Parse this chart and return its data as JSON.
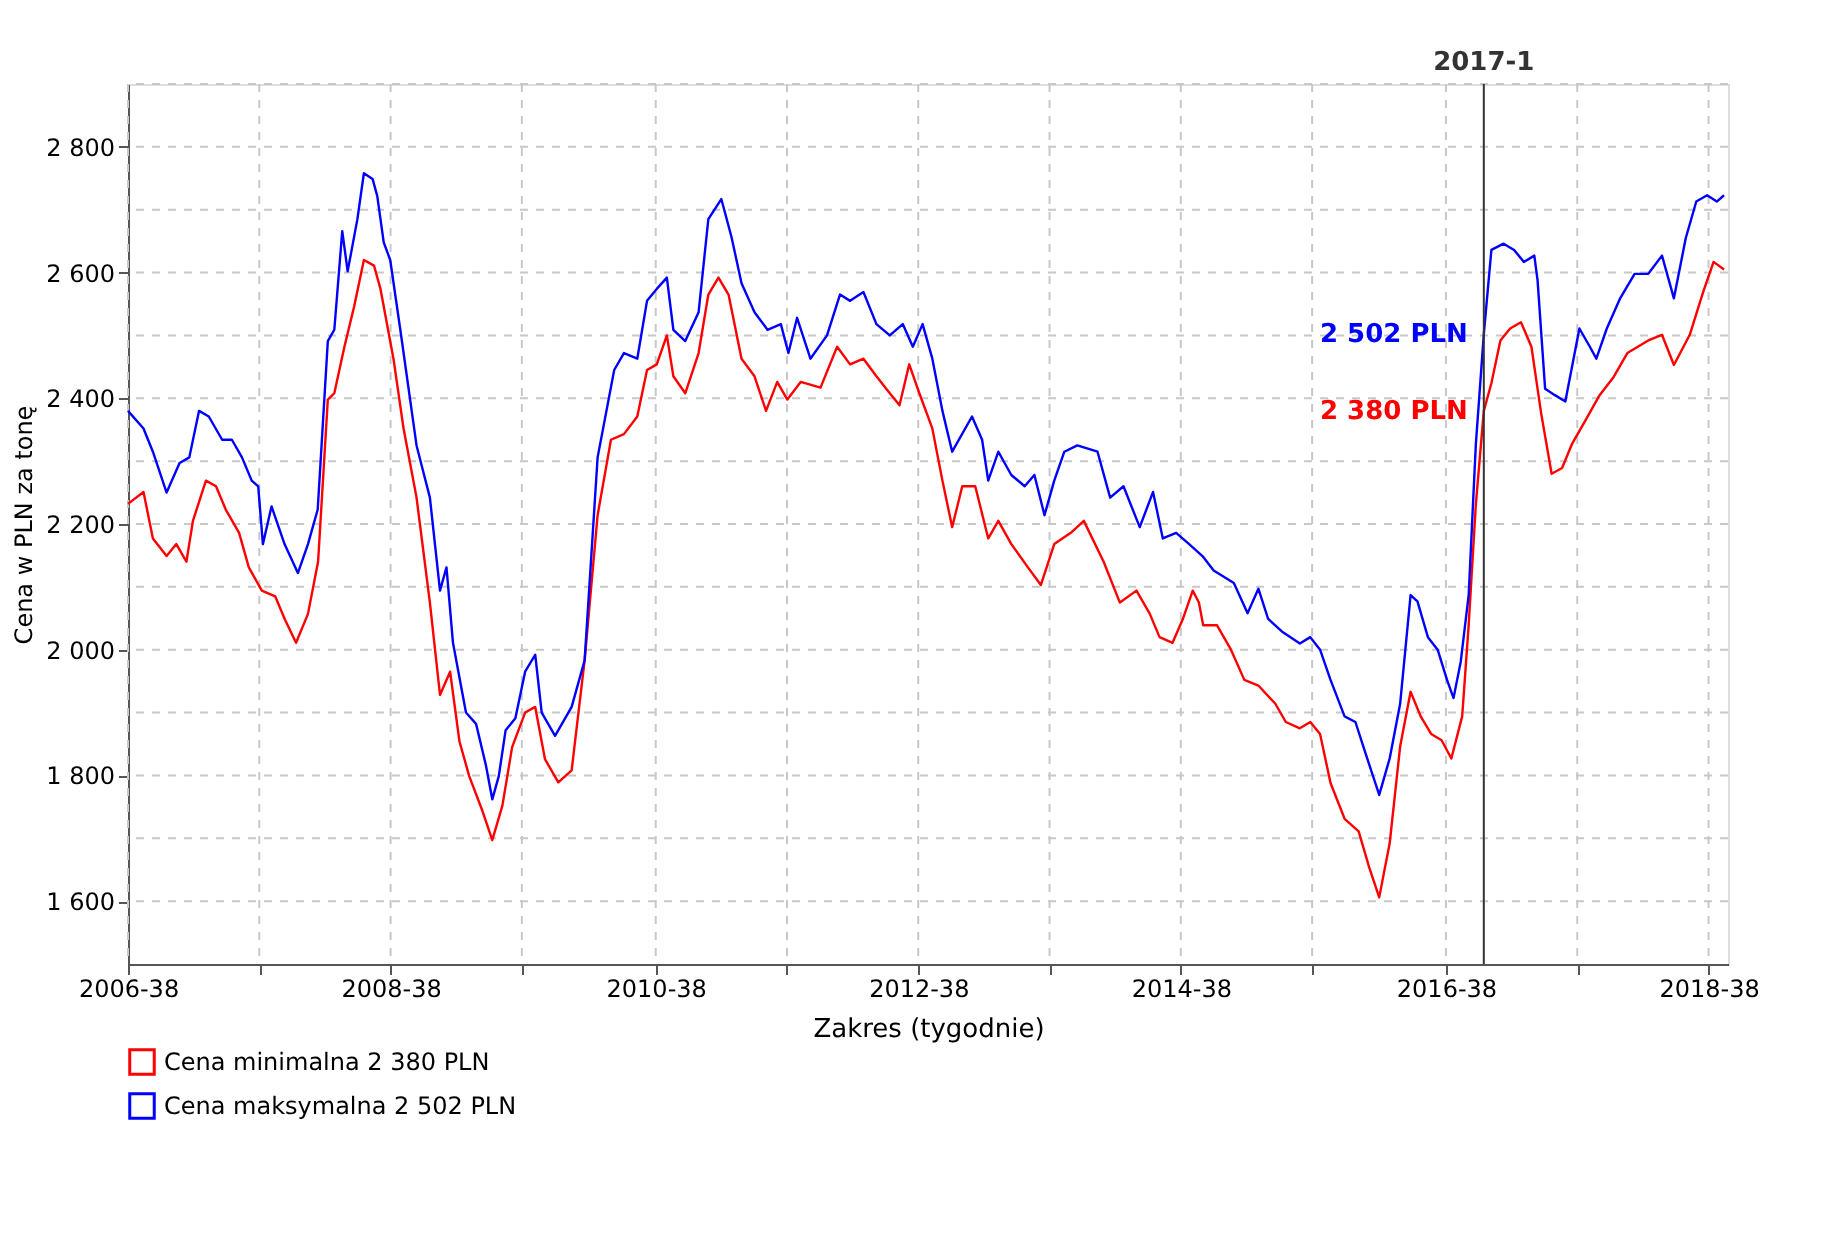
{
  "chart_data": {
    "type": "line",
    "xlabel": "Zakres (tygodnie)",
    "ylabel": "Cena w PLN za tonę",
    "xlim": [
      "2006-09-18",
      "2018-11-10"
    ],
    "xticks": [
      {
        "value": "2006-09-18",
        "label": "2006-38"
      },
      {
        "value": "2007-09-17",
        "label": null
      },
      {
        "value": "2008-09-15",
        "label": "2008-38"
      },
      {
        "value": "2009-09-14",
        "label": null
      },
      {
        "value": "2010-09-20",
        "label": "2010-38"
      },
      {
        "value": "2011-09-19",
        "label": null
      },
      {
        "value": "2012-09-17",
        "label": "2012-38"
      },
      {
        "value": "2013-09-16",
        "label": null
      },
      {
        "value": "2014-09-15",
        "label": "2014-38"
      },
      {
        "value": "2015-09-14",
        "label": null
      },
      {
        "value": "2016-09-19",
        "label": "2016-38"
      },
      {
        "value": "2017-09-18",
        "label": null
      },
      {
        "value": "2018-09-17",
        "label": "2018-38"
      }
    ],
    "ylim": [
      1500,
      2900
    ],
    "yticks": [
      {
        "value": 1600,
        "label": "1 600"
      },
      {
        "value": 1700,
        "label": null
      },
      {
        "value": 1800,
        "label": "1 800"
      },
      {
        "value": 1900,
        "label": null
      },
      {
        "value": 2000,
        "label": "2 000"
      },
      {
        "value": 2100,
        "label": null
      },
      {
        "value": 2200,
        "label": "2 200"
      },
      {
        "value": 2300,
        "label": null
      },
      {
        "value": 2400,
        "label": "2 400"
      },
      {
        "value": 2500,
        "label": null
      },
      {
        "value": 2600,
        "label": "2 600"
      },
      {
        "value": 2700,
        "label": null
      },
      {
        "value": 2800,
        "label": "2 800"
      },
      {
        "value": 2900,
        "label": null
      }
    ],
    "grid": true,
    "legend": "bottom left",
    "marker": "none",
    "line_style": "solid",
    "series": [
      {
        "name": "Cena minimalna 2 380 PLN",
        "color": "#ff0000",
        "x": [
          "2006-09-18",
          "2006-10-31",
          "2006-11-26",
          "2007-01-03",
          "2007-01-30",
          "2007-02-27",
          "2007-03-17",
          "2007-04-22",
          "2007-05-20",
          "2007-06-16",
          "2007-07-23",
          "2007-08-19",
          "2007-09-24",
          "2007-10-31",
          "2007-11-27",
          "2007-12-28",
          "2008-01-30",
          "2008-02-27",
          "2008-03-25",
          "2008-04-12",
          "2008-05-10",
          "2008-06-06",
          "2008-07-03",
          "2008-07-31",
          "2008-08-18",
          "2008-09-23",
          "2008-10-21",
          "2008-11-26",
          "2009-01-02",
          "2009-01-30",
          "2009-02-27",
          "2009-03-25",
          "2009-04-21",
          "2009-05-28",
          "2009-06-24",
          "2009-07-22",
          "2009-08-18",
          "2009-09-23",
          "2009-10-21",
          "2009-11-17",
          "2009-12-24",
          "2010-01-30",
          "2010-03-07",
          "2010-04-12",
          "2010-05-19",
          "2010-06-24",
          "2010-07-31",
          "2010-08-27",
          "2010-09-23",
          "2010-10-21",
          "2010-11-08",
          "2010-12-11",
          "2011-01-17",
          "2011-02-13",
          "2011-03-13",
          "2011-04-10",
          "2011-05-16",
          "2011-06-21",
          "2011-07-23",
          "2011-08-23",
          "2011-09-20",
          "2011-10-27",
          "2011-12-21",
          "2012-02-05",
          "2012-03-12",
          "2012-04-18",
          "2012-05-24",
          "2012-06-30",
          "2012-07-27",
          "2012-08-23",
          "2012-09-20",
          "2012-10-26",
          "2012-11-23",
          "2012-12-20",
          "2013-01-17",
          "2013-02-22",
          "2013-03-30",
          "2013-04-27",
          "2013-06-02",
          "2013-07-18",
          "2013-08-23",
          "2013-09-29",
          "2013-11-14",
          "2013-12-20",
          "2014-02-13",
          "2014-03-30",
          "2014-05-15",
          "2014-06-21",
          "2014-07-18",
          "2014-08-23",
          "2014-09-20",
          "2014-10-18",
          "2014-11-04",
          "2014-11-16",
          "2014-12-24",
          "2015-02-01",
          "2015-03-10",
          "2015-04-18",
          "2015-06-04",
          "2015-07-03",
          "2015-08-11",
          "2015-09-09",
          "2015-10-06",
          "2015-11-04",
          "2015-12-13",
          "2016-01-21",
          "2016-02-19",
          "2016-03-18",
          "2016-04-16",
          "2016-05-15",
          "2016-06-13",
          "2016-07-11",
          "2016-08-09",
          "2016-09-07",
          "2016-10-04",
          "2016-11-03",
          "2016-11-21",
          "2016-12-11",
          "2017-01-02",
          "2017-01-23",
          "2017-02-17",
          "2017-03-16",
          "2017-04-15",
          "2017-05-14",
          "2017-06-10",
          "2017-07-09",
          "2017-08-07",
          "2017-09-04",
          "2017-10-12",
          "2017-11-19",
          "2017-12-28",
          "2018-02-04",
          "2018-04-03",
          "2018-05-11",
          "2018-06-13",
          "2018-07-27",
          "2018-09-02",
          "2018-10-01",
          "2018-10-30"
        ],
        "values": [
          2232,
          2251,
          2177,
          2149,
          2168,
          2140,
          2205,
          2269,
          2260,
          2223,
          2186,
          2131,
          2094,
          2085,
          2048,
          2011,
          2057,
          2140,
          2398,
          2408,
          2482,
          2546,
          2620,
          2611,
          2574,
          2463,
          2352,
          2242,
          2075,
          1928,
          1965,
          1854,
          1799,
          1743,
          1697,
          1752,
          1845,
          1900,
          1909,
          1826,
          1789,
          1808,
          1983,
          2214,
          2334,
          2343,
          2371,
          2445,
          2454,
          2500,
          2435,
          2408,
          2472,
          2565,
          2592,
          2565,
          2463,
          2435,
          2380,
          2426,
          2398,
          2426,
          2417,
          2482,
          2454,
          2463,
          2435,
          2408,
          2389,
          2454,
          2408,
          2352,
          2269,
          2195,
          2260,
          2260,
          2177,
          2205,
          2168,
          2131,
          2103,
          2168,
          2186,
          2205,
          2140,
          2075,
          2094,
          2057,
          2020,
          2011,
          2048,
          2094,
          2075,
          2039,
          2039,
          2000,
          1952,
          1943,
          1914,
          1885,
          1875,
          1885,
          1866,
          1788,
          1731,
          1711,
          1654,
          1606,
          1692,
          1846,
          1933,
          1894,
          1866,
          1856,
          1827,
          1894,
          2039,
          2232,
          2380,
          2424,
          2492,
          2511,
          2521,
          2482,
          2376,
          2280,
          2289,
          2328,
          2366,
          2405,
          2434,
          2472,
          2492,
          2501,
          2453,
          2501,
          2569,
          2617,
          2605
        ]
      },
      {
        "name": "Cena maksymalna 2 502 PLN",
        "color": "#0000ff",
        "x": [
          "2006-09-18",
          "2006-10-31",
          "2006-11-26",
          "2007-01-03",
          "2007-02-08",
          "2007-03-07",
          "2007-04-03",
          "2007-04-30",
          "2007-06-06",
          "2007-07-03",
          "2007-07-31",
          "2007-08-27",
          "2007-09-14",
          "2007-09-27",
          "2007-10-21",
          "2007-11-26",
          "2008-01-02",
          "2008-01-30",
          "2008-02-26",
          "2008-03-25",
          "2008-04-12",
          "2008-05-04",
          "2008-05-19",
          "2008-06-15",
          "2008-07-03",
          "2008-07-27",
          "2008-08-09",
          "2008-08-27",
          "2008-09-14",
          "2008-10-12",
          "2008-11-26",
          "2009-01-02",
          "2009-01-30",
          "2009-02-17",
          "2009-03-07",
          "2009-04-12",
          "2009-05-10",
          "2009-06-06",
          "2009-06-24",
          "2009-07-12",
          "2009-07-31",
          "2009-08-27",
          "2009-09-23",
          "2009-10-21",
          "2009-11-08",
          "2009-12-15",
          "2010-01-30",
          "2010-03-07",
          "2010-04-12",
          "2010-05-28",
          "2010-06-24",
          "2010-07-31",
          "2010-08-27",
          "2010-09-23",
          "2010-10-21",
          "2010-11-08",
          "2010-12-11",
          "2011-01-17",
          "2011-02-13",
          "2011-03-21",
          "2011-04-18",
          "2011-05-16",
          "2011-06-21",
          "2011-07-27",
          "2011-09-02",
          "2011-09-23",
          "2011-10-17",
          "2011-11-23",
          "2012-01-08",
          "2012-02-13",
          "2012-03-12",
          "2012-04-18",
          "2012-05-24",
          "2012-06-30",
          "2012-08-05",
          "2012-09-02",
          "2012-09-29",
          "2012-10-26",
          "2012-11-23",
          "2012-12-20",
          "2013-02-13",
          "2013-03-13",
          "2013-03-30",
          "2013-04-27",
          "2013-06-02",
          "2013-07-09",
          "2013-08-05",
          "2013-09-02",
          "2013-09-29",
          "2013-10-27",
          "2013-12-02",
          "2014-01-27",
          "2014-03-03",
          "2014-04-09",
          "2014-05-24",
          "2014-06-30",
          "2014-07-27",
          "2014-09-02",
          "2014-10-08",
          "2014-11-14",
          "2014-12-15",
          "2015-02-09",
          "2015-03-19",
          "2015-04-18",
          "2015-05-15",
          "2015-06-22",
          "2015-08-11",
          "2015-09-09",
          "2015-10-06",
          "2015-11-04",
          "2015-12-13",
          "2016-01-12",
          "2016-02-08",
          "2016-03-18",
          "2016-04-16",
          "2016-05-15",
          "2016-06-13",
          "2016-07-02",
          "2016-07-31",
          "2016-08-27",
          "2016-09-22",
          "2016-10-10",
          "2016-10-30",
          "2016-11-21",
          "2016-12-11",
          "2017-01-02",
          "2017-01-23",
          "2017-02-26",
          "2017-03-27",
          "2017-04-23",
          "2017-05-22",
          "2017-05-31",
          "2017-06-21",
          "2017-07-18",
          "2017-08-16",
          "2017-09-24",
          "2017-10-23",
          "2017-11-10",
          "2017-12-09",
          "2018-01-15",
          "2018-02-24",
          "2018-04-03",
          "2018-05-11",
          "2018-06-13",
          "2018-07-16",
          "2018-08-14",
          "2018-09-13",
          "2018-10-10",
          "2018-10-30"
        ],
        "values": [
          2380,
          2352,
          2315,
          2250,
          2297,
          2306,
          2380,
          2371,
          2334,
          2334,
          2306,
          2269,
          2260,
          2168,
          2228,
          2168,
          2122,
          2168,
          2223,
          2491,
          2509,
          2666,
          2602,
          2685,
          2758,
          2749,
          2722,
          2648,
          2620,
          2509,
          2325,
          2242,
          2094,
          2131,
          2011,
          1900,
          1882,
          1817,
          1762,
          1799,
          1872,
          1891,
          1965,
          1992,
          1900,
          1863,
          1909,
          1983,
          2306,
          2445,
          2472,
          2463,
          2555,
          2574,
          2592,
          2509,
          2491,
          2537,
          2685,
          2717,
          2657,
          2583,
          2537,
          2509,
          2518,
          2472,
          2528,
          2463,
          2500,
          2565,
          2555,
          2569,
          2518,
          2500,
          2518,
          2482,
          2518,
          2463,
          2380,
          2315,
          2371,
          2334,
          2269,
          2315,
          2278,
          2260,
          2278,
          2214,
          2269,
          2315,
          2325,
          2315,
          2242,
          2260,
          2195,
          2251,
          2177,
          2186,
          2168,
          2149,
          2126,
          2106,
          2058,
          2097,
          2049,
          2029,
          2010,
          2020,
          2000,
          1952,
          1894,
          1885,
          1837,
          1769,
          1827,
          1914,
          2087,
          2077,
          2020,
          2000,
          1952,
          1923,
          1981,
          2087,
          2328,
          2502,
          2636,
          2646,
          2636,
          2617,
          2627,
          2588,
          2415,
          2405,
          2395,
          2511,
          2482,
          2463,
          2511,
          2559,
          2598,
          2598,
          2627,
          2559,
          2655,
          2713,
          2723,
          2713,
          2723
        ]
      }
    ],
    "ref_lines": [
      {
        "axis": "x",
        "value": "2017-01-02",
        "label": "2017-1",
        "color": "#333333",
        "line_style": "solid"
      }
    ],
    "annotations": [
      {
        "text": "2 380 PLN",
        "x": "2017-01-02",
        "y": 2380
      },
      {
        "text": "2 502 PLN",
        "x": "2017-01-02",
        "y": 2502
      }
    ]
  }
}
